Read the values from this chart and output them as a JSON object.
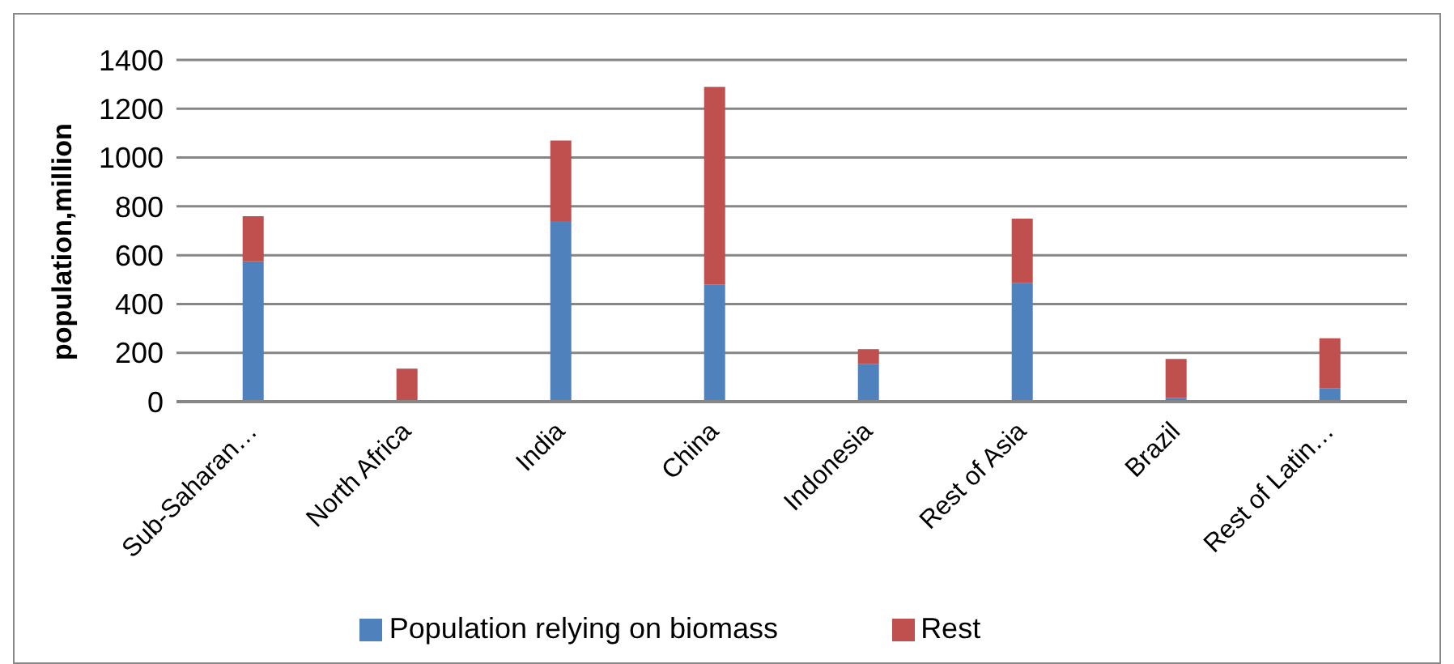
{
  "chart_data": {
    "type": "bar",
    "stacked": true,
    "ylabel": "population,million",
    "categories": [
      "Sub-Saharan…",
      "North Africa",
      "India",
      "China",
      "Indonesia",
      "Rest of Asia",
      "Brazil",
      "Rest of Latin…"
    ],
    "series": [
      {
        "name": "Population relying on biomass",
        "color": "#4f81bd",
        "values": [
          575,
          0,
          740,
          480,
          155,
          485,
          15,
          55
        ]
      },
      {
        "name": "Rest",
        "color": "#c0504d",
        "values": [
          185,
          135,
          330,
          810,
          60,
          265,
          160,
          205
        ]
      }
    ],
    "ylim": [
      0,
      1400
    ],
    "yticks": [
      0,
      200,
      400,
      600,
      800,
      1000,
      1200,
      1400
    ],
    "grid": "y",
    "legend": "bottom"
  }
}
